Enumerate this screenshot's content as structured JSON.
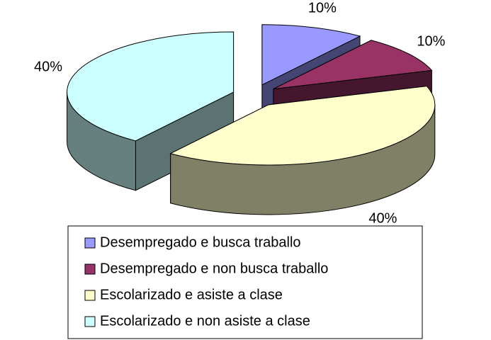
{
  "chart_data": {
    "type": "pie",
    "categories": [
      "Desempregado e busca traballo",
      "Desempregado e non busca traballo",
      "Escolarizado e asiste a clase",
      "Escolarizado e non asiste a clase"
    ],
    "values": [
      10,
      10,
      40,
      40
    ],
    "value_labels": [
      "10%",
      "10%",
      "40%",
      "40%"
    ],
    "colors": [
      "#9999ff",
      "#993366",
      "#ffffcc",
      "#ccffff"
    ],
    "legend": "bottom"
  }
}
